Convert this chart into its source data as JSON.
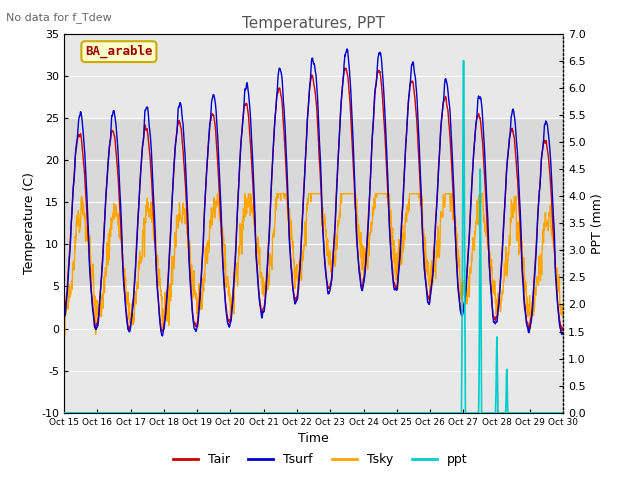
{
  "title": "Temperatures, PPT",
  "subtitle": "No data for f_Tdew",
  "xlabel": "Time",
  "ylabel_left": "Temperature (C)",
  "ylabel_right": "PPT (mm)",
  "station_label": "BA_arable",
  "ylim_left": [
    -10,
    35
  ],
  "ylim_right": [
    0.0,
    7.0
  ],
  "yticks_left": [
    -10,
    -5,
    0,
    5,
    10,
    15,
    20,
    25,
    30,
    35
  ],
  "yticks_right": [
    0.0,
    0.5,
    1.0,
    1.5,
    2.0,
    2.5,
    3.0,
    3.5,
    4.0,
    4.5,
    5.0,
    5.5,
    6.0,
    6.5,
    7.0
  ],
  "xtick_labels": [
    "Oct 15",
    "Oct 16",
    "Oct 17",
    "Oct 18",
    "Oct 19",
    "Oct 20",
    "Oct 21",
    "Oct 22",
    "Oct 23",
    "Oct 24",
    "Oct 25",
    "Oct 26",
    "Oct 27",
    "Oct 28",
    "Oct 29",
    "Oct 30"
  ],
  "color_tair": "#cc0000",
  "color_tsurf": "#0000cc",
  "color_tsky": "#ffa500",
  "color_ppt": "#00cccc",
  "bg_color": "#e8e8e8",
  "grid_color": "#ffffff",
  "shaded_band_low": 5,
  "shaded_band_high": 25,
  "legend_entries": [
    "Tair",
    "Tsurf",
    "Tsky",
    "ppt"
  ],
  "figsize": [
    6.4,
    4.8
  ],
  "dpi": 100
}
